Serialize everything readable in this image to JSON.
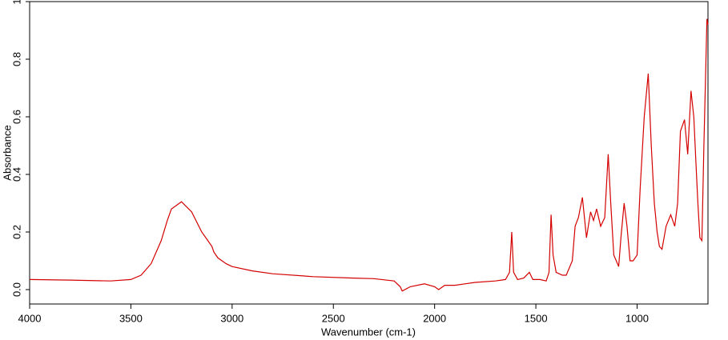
{
  "chart_data": {
    "type": "line",
    "xlabel": "Wavenumber (cm-1)",
    "ylabel": "Absorbance",
    "x": [
      4000,
      3800,
      3600,
      3500,
      3450,
      3400,
      3350,
      3320,
      3300,
      3250,
      3200,
      3150,
      3100,
      3090,
      3070,
      3050,
      3030,
      3000,
      2900,
      2800,
      2600,
      2400,
      2300,
      2200,
      2170,
      2160,
      2120,
      2050,
      2000,
      1980,
      1950,
      1900,
      1850,
      1800,
      1700,
      1650,
      1630,
      1619,
      1610,
      1590,
      1560,
      1532,
      1515,
      1480,
      1449,
      1435,
      1425,
      1415,
      1400,
      1369,
      1350,
      1320,
      1306,
      1290,
      1270,
      1250,
      1230,
      1215,
      1200,
      1180,
      1160,
      1143,
      1130,
      1115,
      1103,
      1091,
      1080,
      1064,
      1050,
      1035,
      1020,
      1000,
      985,
      965,
      945,
      930,
      915,
      901,
      890,
      877,
      857,
      834,
      814,
      800,
      786,
      766,
      750,
      734,
      720,
      710,
      700,
      690,
      680,
      670,
      655,
      650
    ],
    "series": [
      {
        "name": "Absorbance",
        "color": "#d40000",
        "values": [
          0.035,
          0.033,
          0.03,
          0.035,
          0.05,
          0.09,
          0.17,
          0.24,
          0.28,
          0.305,
          0.27,
          0.2,
          0.15,
          0.13,
          0.11,
          0.1,
          0.09,
          0.08,
          0.065,
          0.055,
          0.045,
          0.04,
          0.038,
          0.03,
          0.01,
          -0.005,
          0.01,
          0.02,
          0.01,
          0.0,
          0.015,
          0.015,
          0.02,
          0.025,
          0.03,
          0.035,
          0.06,
          0.2,
          0.06,
          0.035,
          0.04,
          0.06,
          0.035,
          0.035,
          0.03,
          0.06,
          0.26,
          0.12,
          0.06,
          0.05,
          0.05,
          0.1,
          0.22,
          0.25,
          0.32,
          0.18,
          0.27,
          0.24,
          0.28,
          0.22,
          0.25,
          0.47,
          0.3,
          0.12,
          0.1,
          0.08,
          0.18,
          0.3,
          0.22,
          0.1,
          0.1,
          0.12,
          0.35,
          0.6,
          0.75,
          0.5,
          0.3,
          0.2,
          0.15,
          0.14,
          0.22,
          0.26,
          0.22,
          0.3,
          0.55,
          0.59,
          0.47,
          0.69,
          0.6,
          0.45,
          0.3,
          0.18,
          0.17,
          0.5,
          0.94,
          0.92
        ]
      }
    ],
    "xlim": [
      4000,
      650
    ],
    "xticks": [
      4000,
      3500,
      3000,
      2500,
      2000,
      1500,
      1000
    ],
    "ylim": [
      -0.05,
      1.0
    ],
    "yticks": [
      {
        "value": 0,
        "label": "0.0"
      },
      0.2,
      0.4,
      0.6,
      0.8,
      1
    ]
  }
}
